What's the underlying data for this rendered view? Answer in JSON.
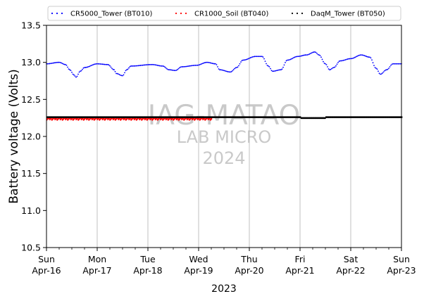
{
  "chart_data": {
    "type": "scatter",
    "ylabel": "Battery voltage (Volts)",
    "xlabel": "2023",
    "ylim": [
      10.5,
      13.5
    ],
    "yticks": [
      10.5,
      11.0,
      11.5,
      12.0,
      12.5,
      13.0,
      13.5
    ],
    "ytick_labels": [
      "10.5",
      "11.0",
      "11.5",
      "12.0",
      "12.5",
      "13.0",
      "13.5"
    ],
    "xlim": [
      "2023-04-16",
      "2023-04-23"
    ],
    "xticks": [
      {
        "day": "Sun",
        "date": "Apr-16"
      },
      {
        "day": "Mon",
        "date": "Apr-17"
      },
      {
        "day": "Tue",
        "date": "Apr-18"
      },
      {
        "day": "Wed",
        "date": "Apr-19"
      },
      {
        "day": "Thu",
        "date": "Apr-20"
      },
      {
        "day": "Fri",
        "date": "Apr-21"
      },
      {
        "day": "Sat",
        "date": "Apr-22"
      },
      {
        "day": "Sun",
        "date": "Apr-23"
      }
    ],
    "grid": "vertical",
    "legend_position": "top",
    "watermark": [
      "IAG-MATAO",
      "LAB MICRO",
      "2024"
    ],
    "series": [
      {
        "name": "CR5000_Tower (BT010)",
        "color": "#0000ff",
        "points": [
          [
            "2023-04-16 00:00",
            12.98
          ],
          [
            "2023-04-16 06:00",
            13.0
          ],
          [
            "2023-04-16 09:00",
            12.97
          ],
          [
            "2023-04-16 11:00",
            12.9
          ],
          [
            "2023-04-16 13:00",
            12.83
          ],
          [
            "2023-04-16 14:00",
            12.8
          ],
          [
            "2023-04-16 16:00",
            12.88
          ],
          [
            "2023-04-16 18:00",
            12.93
          ],
          [
            "2023-04-17 00:00",
            12.98
          ],
          [
            "2023-04-17 05:00",
            12.97
          ],
          [
            "2023-04-17 08:00",
            12.9
          ],
          [
            "2023-04-17 09:00",
            12.85
          ],
          [
            "2023-04-17 12:00",
            12.82
          ],
          [
            "2023-04-17 14:00",
            12.9
          ],
          [
            "2023-04-17 16:00",
            12.95
          ],
          [
            "2023-04-18 02:00",
            12.97
          ],
          [
            "2023-04-18 07:00",
            12.95
          ],
          [
            "2023-04-18 10:00",
            12.9
          ],
          [
            "2023-04-18 13:00",
            12.89
          ],
          [
            "2023-04-18 16:00",
            12.94
          ],
          [
            "2023-04-18 23:00",
            12.96
          ],
          [
            "2023-04-19 04:00",
            13.0
          ],
          [
            "2023-04-19 08:00",
            12.98
          ],
          [
            "2023-04-19 10:00",
            12.9
          ],
          [
            "2023-04-19 15:00",
            12.87
          ],
          [
            "2023-04-19 18:00",
            12.93
          ],
          [
            "2023-04-19 21:00",
            13.03
          ],
          [
            "2023-04-20 03:00",
            13.08
          ],
          [
            "2023-04-20 06:00",
            13.08
          ],
          [
            "2023-04-20 09:00",
            12.95
          ],
          [
            "2023-04-20 11:00",
            12.88
          ],
          [
            "2023-04-20 15:00",
            12.9
          ],
          [
            "2023-04-20 18:00",
            13.03
          ],
          [
            "2023-04-20 23:00",
            13.08
          ],
          [
            "2023-04-21 03:00",
            13.1
          ],
          [
            "2023-04-21 07:00",
            13.14
          ],
          [
            "2023-04-21 09:00",
            13.1
          ],
          [
            "2023-04-21 12:00",
            12.98
          ],
          [
            "2023-04-21 14:00",
            12.9
          ],
          [
            "2023-04-21 16:00",
            12.93
          ],
          [
            "2023-04-21 19:00",
            13.02
          ],
          [
            "2023-04-22 00:00",
            13.05
          ],
          [
            "2023-04-22 05:00",
            13.1
          ],
          [
            "2023-04-22 09:00",
            13.07
          ],
          [
            "2023-04-22 12:00",
            12.92
          ],
          [
            "2023-04-22 14:00",
            12.84
          ],
          [
            "2023-04-22 17:00",
            12.9
          ],
          [
            "2023-04-22 20:00",
            12.98
          ],
          [
            "2023-04-23 00:00",
            12.98
          ]
        ]
      },
      {
        "name": "CR1000_Soil (BT040)",
        "color": "#ff0000",
        "start": "2023-04-16 00:00",
        "end": "2023-04-19 06:00",
        "value": 12.24
      },
      {
        "name": "DaqM_Tower (BT050)",
        "color": "#000000",
        "start": "2023-04-16 00:00",
        "end": "2023-04-23 00:00",
        "value": 12.26
      }
    ]
  }
}
